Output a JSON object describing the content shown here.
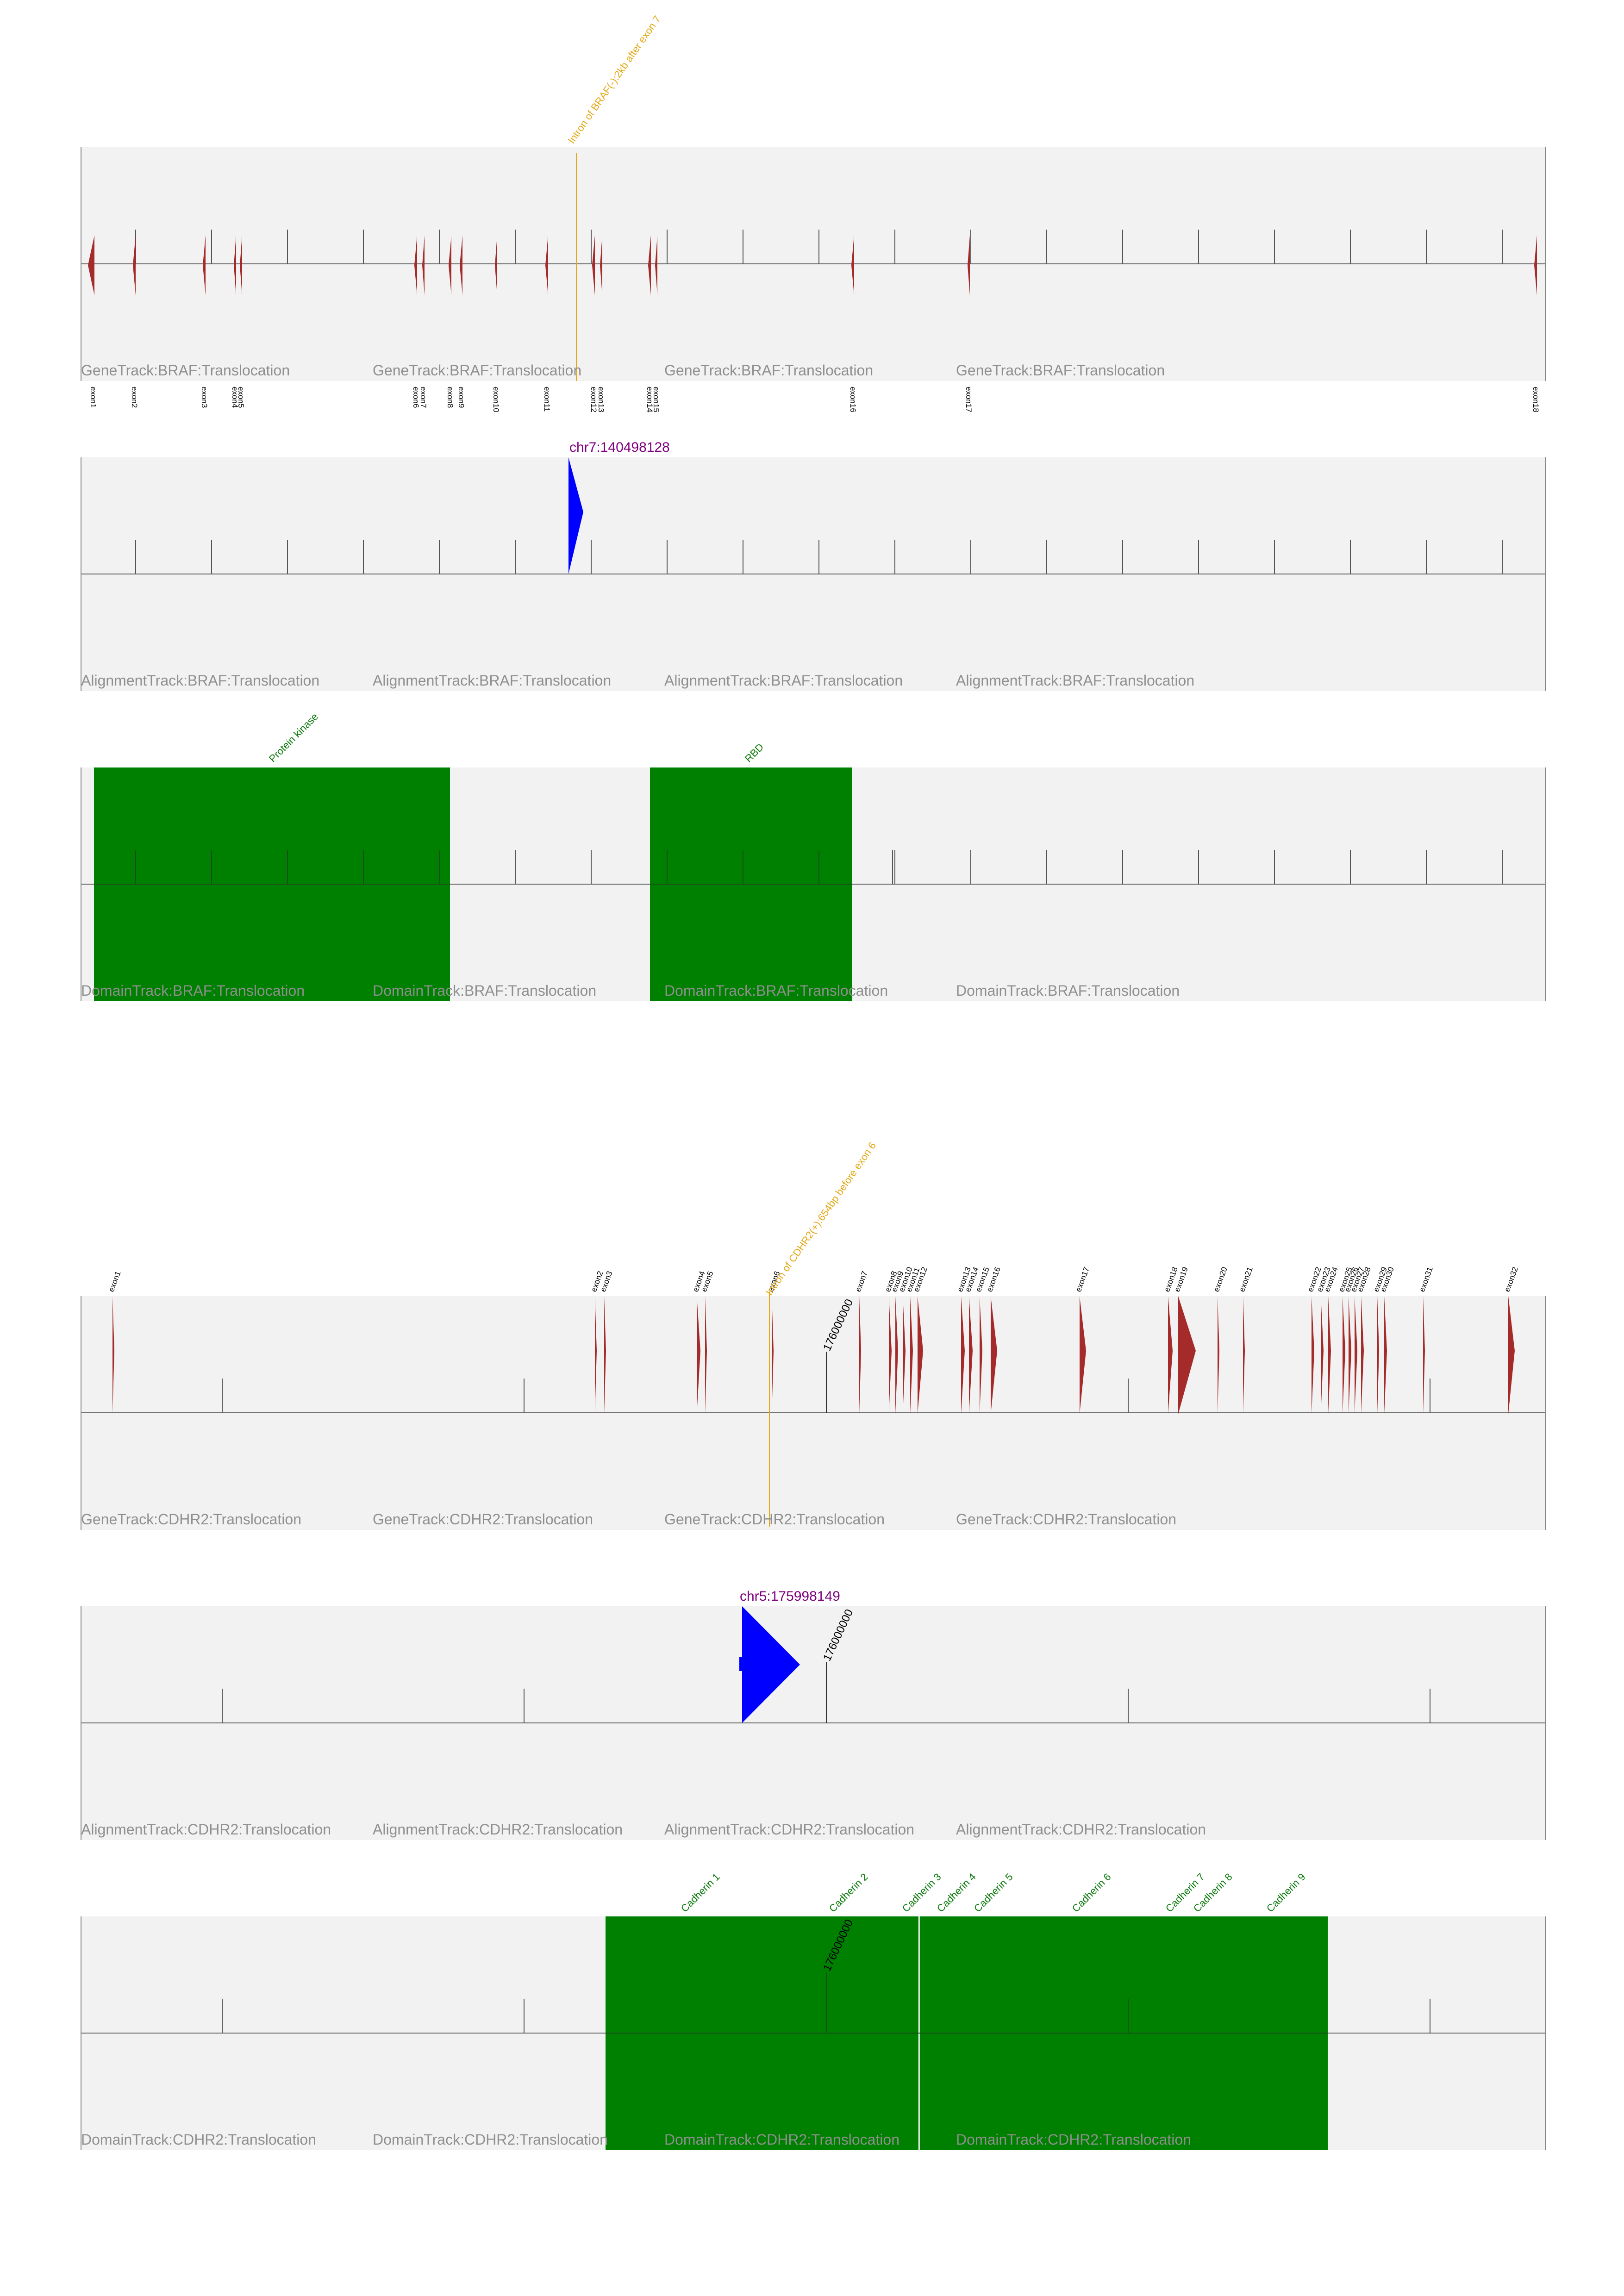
{
  "colors": {
    "panel_bg": "#f2f2f2",
    "exon": "#a52a2a",
    "breakpoint": "#e6a817",
    "read": "#0000ff",
    "domain": "#008000",
    "coordinate_text": "#800080",
    "watermark": "#8f8f8f"
  },
  "braf": {
    "gene_track": {
      "watermark": "GeneTrack:BRAF:Translocation",
      "breakpoint_label": "Intron of BRAF(-):2kb after exon 7",
      "exons": [
        "exon1",
        "exon2",
        "exon3",
        "exon4",
        "exon5",
        "exon6",
        "exon7",
        "exon8",
        "exon9",
        "exon10",
        "exon11",
        "exon12",
        "exon13",
        "exon14",
        "exon15",
        "exon16",
        "exon17",
        "exon18"
      ]
    },
    "alignment_track": {
      "watermark": "AlignmentTrack:BRAF:Translocation",
      "coordinate": "chr7:140498128"
    },
    "domain_track": {
      "watermark": "DomainTrack:BRAF:Translocation",
      "domains": [
        "Protein kinase",
        "RBD"
      ]
    }
  },
  "cdhr2": {
    "gene_track": {
      "watermark": "GeneTrack:CDHR2:Translocation",
      "breakpoint_label": "Intron of CDHR2(+):654bp before exon 6",
      "position_label": "176000000",
      "exons": [
        "exon1",
        "exon2",
        "exon3",
        "exon4",
        "exon5",
        "exon6",
        "exon7",
        "exon8",
        "exon9",
        "exon10",
        "exon11",
        "exon12",
        "exon13",
        "exon14",
        "exon15",
        "exon16",
        "exon17",
        "exon18",
        "exon19",
        "exon20",
        "exon21",
        "exon22",
        "exon23",
        "exon24",
        "exon25",
        "exon26",
        "exon27",
        "exon28",
        "exon29",
        "exon30",
        "exon31",
        "exon32"
      ]
    },
    "alignment_track": {
      "watermark": "AlignmentTrack:CDHR2:Translocation",
      "coordinate": "chr5:175998149",
      "position_label": "176000000"
    },
    "domain_track": {
      "watermark": "DomainTrack:CDHR2:Translocation",
      "position_label": "176000000",
      "domains": [
        "Cadherin 1",
        "Cadherin 2",
        "Cadherin 3",
        "Cadherin 4",
        "Cadherin 5",
        "Cadherin 6",
        "Cadherin 7",
        "Cadherin 8",
        "Cadherin 9"
      ]
    }
  }
}
